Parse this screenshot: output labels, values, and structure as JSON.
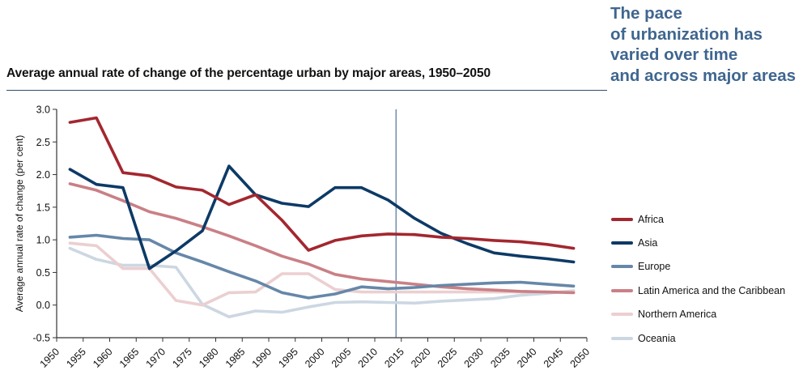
{
  "headline": {
    "lines": [
      "The pace",
      "of urbanization has",
      "varied over time",
      "and across major areas"
    ],
    "color": "#3f6690"
  },
  "chart_data": {
    "type": "line",
    "title": "Average annual rate of change of the percentage urban by major areas, 1950–2050",
    "xlabel": "",
    "ylabel": "Average annual rate of change (per cent)",
    "xlim": [
      1950,
      2050
    ],
    "ylim": [
      -0.5,
      3.0
    ],
    "x_ticks": [
      "1950",
      "1955",
      "1960",
      "1965",
      "1970",
      "1975",
      "1980",
      "1985",
      "1990",
      "1995",
      "2000",
      "2005",
      "2010",
      "2015",
      "2020",
      "2025",
      "2030",
      "2035",
      "2040",
      "2045",
      "2050"
    ],
    "y_ticks": [
      "3.0",
      "2.5",
      "2.0",
      "1.5",
      "1.0",
      "0.5",
      "0.0",
      "-0.5"
    ],
    "grid": false,
    "reference_line_x": 2014,
    "legend_position": "right",
    "x": [
      1952.5,
      1957.5,
      1962.5,
      1967.5,
      1972.5,
      1977.5,
      1982.5,
      1987.5,
      1992.5,
      1997.5,
      2002.5,
      2007.5,
      2012.5,
      2017.5,
      2022.5,
      2027.5,
      2032.5,
      2037.5,
      2042.5,
      2047.5
    ],
    "series": [
      {
        "name": "Africa",
        "color": "#a3272f",
        "values": [
          2.8,
          2.87,
          2.03,
          1.98,
          1.81,
          1.76,
          1.54,
          1.69,
          1.3,
          0.84,
          0.99,
          1.06,
          1.09,
          1.08,
          1.04,
          1.02,
          0.99,
          0.97,
          0.93,
          0.87
        ]
      },
      {
        "name": "Asia",
        "color": "#0d3a66",
        "values": [
          2.08,
          1.85,
          1.8,
          0.56,
          0.83,
          1.14,
          2.13,
          1.69,
          1.56,
          1.51,
          1.8,
          1.8,
          1.61,
          1.33,
          1.1,
          0.94,
          0.8,
          0.75,
          0.71,
          0.66
        ]
      },
      {
        "name": "Europe",
        "color": "#6687a8",
        "values": [
          1.04,
          1.07,
          1.02,
          1.0,
          0.8,
          0.66,
          0.51,
          0.37,
          0.19,
          0.11,
          0.17,
          0.28,
          0.25,
          0.27,
          0.3,
          0.32,
          0.34,
          0.35,
          0.32,
          0.29
        ]
      },
      {
        "name": "Latin America and the Caribbean",
        "color": "#c98085",
        "values": [
          1.86,
          1.76,
          1.6,
          1.43,
          1.33,
          1.2,
          1.06,
          0.91,
          0.75,
          0.63,
          0.47,
          0.4,
          0.36,
          0.32,
          0.28,
          0.25,
          0.23,
          0.21,
          0.2,
          0.19
        ]
      },
      {
        "name": "Northern America",
        "color": "#ebcfd1",
        "values": [
          0.95,
          0.91,
          0.56,
          0.56,
          0.07,
          0.0,
          0.19,
          0.2,
          0.48,
          0.48,
          0.24,
          0.2,
          0.2,
          0.2,
          0.2,
          0.2,
          0.2,
          0.2,
          0.2,
          0.2
        ]
      },
      {
        "name": "Oceania",
        "color": "#ccd7e2",
        "values": [
          0.87,
          0.7,
          0.61,
          0.61,
          0.58,
          0.01,
          -0.18,
          -0.09,
          -0.11,
          -0.03,
          0.04,
          0.05,
          0.04,
          0.03,
          0.06,
          0.08,
          0.1,
          0.15,
          0.18,
          0.22
        ]
      }
    ]
  }
}
